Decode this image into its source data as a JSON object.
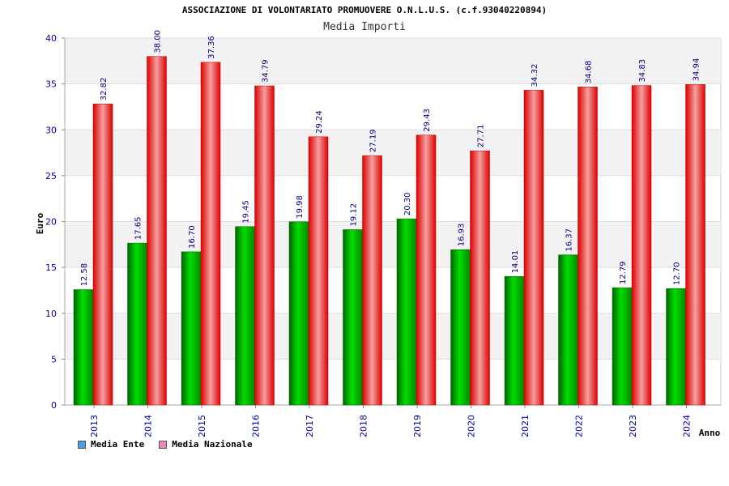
{
  "header": {
    "title": "ASSOCIAZIONE DI VOLONTARIATO PROMUOVERE O.N.L.U.S. (c.f.93040220894)",
    "subtitle": "Media Importi"
  },
  "legend": [
    {
      "label": "Media Ente",
      "color": "#5599ee"
    },
    {
      "label": "Media Nazionale",
      "color": "#ee88bb"
    }
  ],
  "colors": {
    "ente": "#00aa00",
    "nazionale": "#ee1111",
    "plot_band": "#f2f2f2"
  },
  "chart_data": {
    "type": "bar",
    "categories": [
      "2013",
      "2014",
      "2015",
      "2016",
      "2017",
      "2018",
      "2019",
      "2020",
      "2021",
      "2022",
      "2023",
      "2024"
    ],
    "series": [
      {
        "name": "Media Ente",
        "values": [
          12.58,
          17.65,
          16.7,
          19.45,
          19.98,
          19.12,
          20.3,
          16.93,
          14.01,
          16.37,
          12.79,
          12.7
        ]
      },
      {
        "name": "Media Nazionale",
        "values": [
          32.82,
          38.0,
          37.36,
          34.79,
          29.24,
          27.19,
          29.43,
          27.71,
          34.32,
          34.68,
          34.83,
          34.94
        ]
      }
    ],
    "data_labels": [
      [
        "12.58",
        "17.65",
        "16.70",
        "19.45",
        "19.98",
        "19.12",
        "20.30",
        "16.93",
        "14.01",
        "16.37",
        "12.79",
        "12.70"
      ],
      [
        "32.82",
        "38.00",
        "37.36",
        "34.79",
        "29.24",
        "27.19",
        "29.43",
        "27.71",
        "34.32",
        "34.68",
        "34.83",
        "34.94"
      ]
    ],
    "ylabel": "Euro",
    "xlabel": "Anno",
    "ylim": [
      0,
      40
    ],
    "yticks": [
      "0",
      "5",
      "10",
      "15",
      "20",
      "25",
      "30",
      "35",
      "40"
    ],
    "grid": true,
    "legend_position": "bottom-left"
  }
}
